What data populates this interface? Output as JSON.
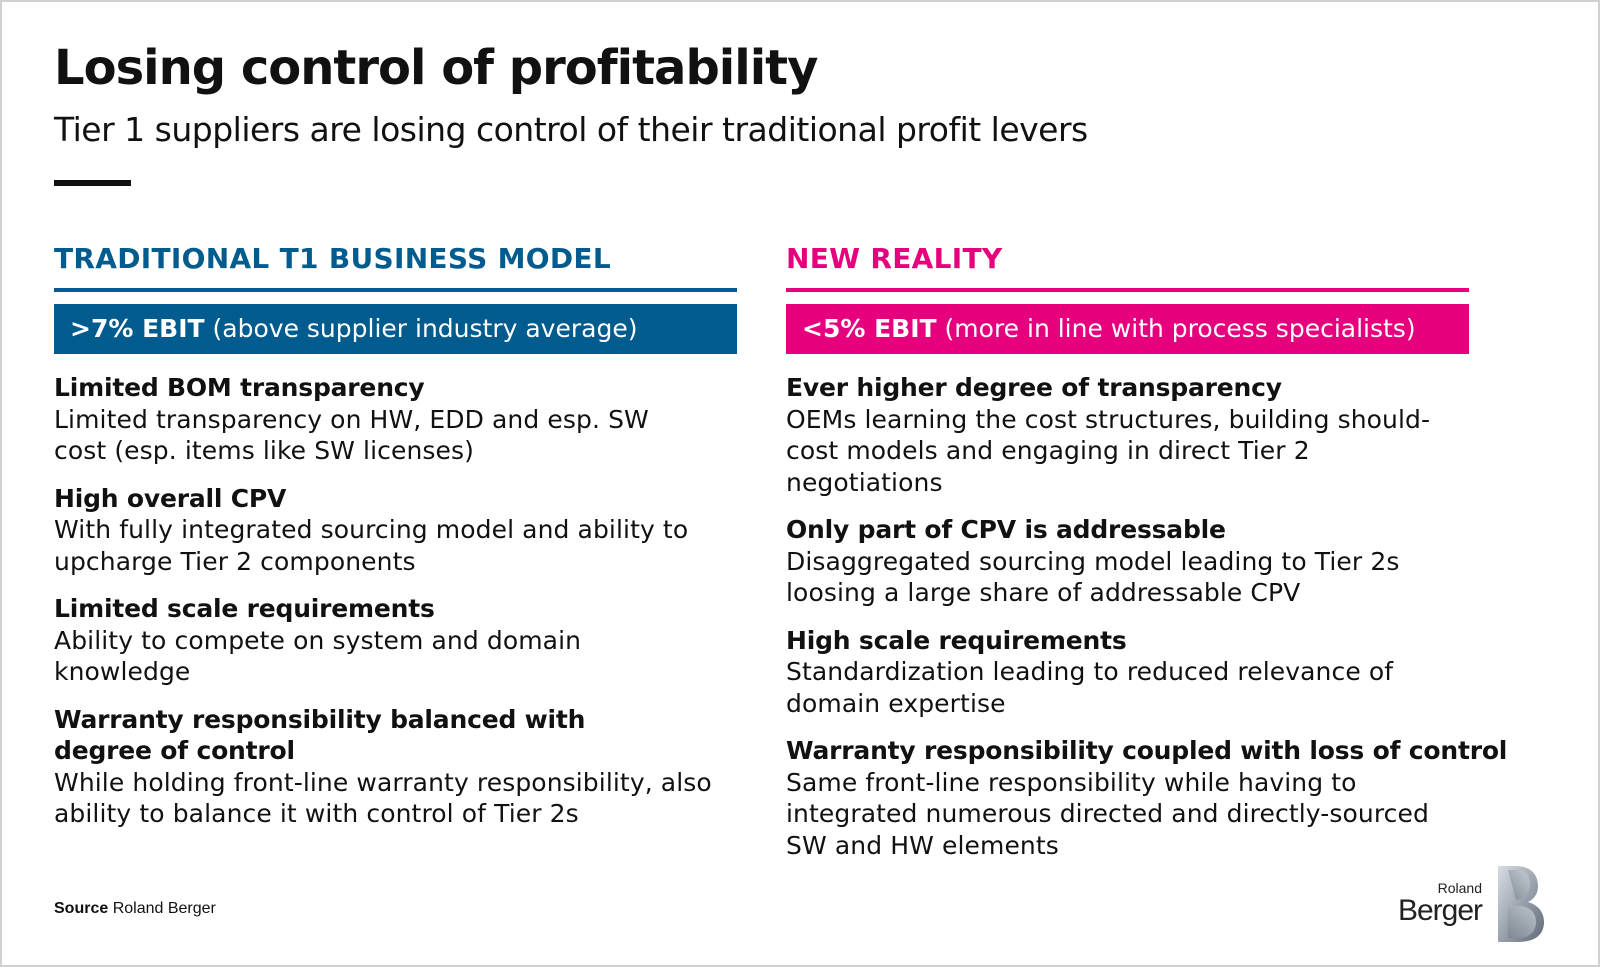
{
  "title": "Losing control of profitability",
  "subtitle": "Tier 1 suppliers are losing control of their traditional profit levers",
  "colors": {
    "left_accent": "#005b8f",
    "right_accent": "#e6007e",
    "text": "#111111"
  },
  "left": {
    "heading": "TRADITIONAL T1 BUSINESS MODEL",
    "ebit_bold": ">7% EBIT",
    "ebit_rest": " (above supplier industry average)",
    "items": [
      {
        "heading": "Limited BOM transparency",
        "text": "Limited transparency on HW, EDD and esp. SW cost (esp. items like SW licenses)"
      },
      {
        "heading": "High overall CPV",
        "text": "With fully integrated sourcing model and ability to upcharge Tier 2 components"
      },
      {
        "heading": "Limited scale requirements",
        "text": "Ability to compete on system and domain knowledge"
      },
      {
        "heading": "Warranty responsibility balanced with degree of control",
        "text": "While holding front-line warranty responsibility, also ability to balance it with control of Tier 2s"
      }
    ]
  },
  "right": {
    "heading": "NEW REALITY",
    "ebit_bold": "<5% EBIT",
    "ebit_rest": " (more in line with process specialists)",
    "items": [
      {
        "heading": "Ever higher degree of transparency",
        "text": "OEMs learning the cost structures, building should-cost models and engaging in direct Tier 2 negotiations"
      },
      {
        "heading": "Only part of CPV is addressable",
        "text": "Disaggregated sourcing model leading to Tier 2s loosing a large share of addressable CPV"
      },
      {
        "heading": "High scale requirements",
        "text": "Standardization leading to reduced relevance of domain expertise"
      },
      {
        "heading": "Warranty responsibility coupled with loss of control",
        "text": "Same front-line responsibility while having to integrated numerous directed and directly-sourced SW and HW elements"
      }
    ]
  },
  "source": {
    "label": "Source",
    "text": " Roland Berger"
  },
  "logo": {
    "line1": "Roland",
    "line2": "Berger",
    "icon": "roland-berger-b-logo"
  }
}
